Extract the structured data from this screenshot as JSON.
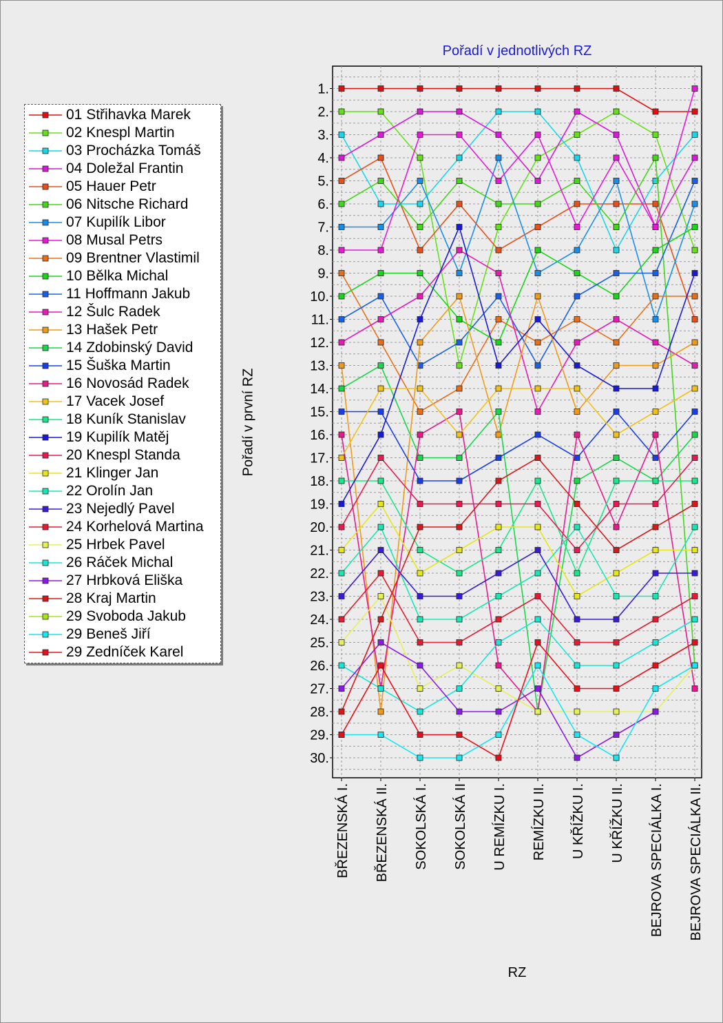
{
  "chart_data": {
    "type": "line",
    "title": "Pořadí v jednotlivých RZ",
    "xlabel": "RZ",
    "ylabel": "Pořadí v první RZ",
    "y_inverted": true,
    "ylim": [
      1,
      30
    ],
    "y_tick_labels": [
      "1.",
      "2.",
      "3.",
      "4.",
      "5.",
      "6.",
      "7.",
      "8.",
      "9.",
      "10.",
      "11.",
      "12.",
      "13.",
      "14.",
      "15.",
      "16.",
      "17.",
      "18.",
      "19.",
      "20.",
      "21.",
      "22.",
      "23.",
      "24.",
      "25.",
      "26.",
      "27.",
      "28.",
      "29.",
      "30."
    ],
    "categories": [
      "BŘEZENSKÁ I.",
      "BŘEZENSKÁ II.",
      "SOKOLSKÁ I.",
      "SOKOLSKÁ II",
      "U REMÍZKU I.",
      "REMÍZKU II.",
      "U KŘÍŽKU I.",
      "U KŘÍŽKU II.",
      "BEJROVA SPECIÁLKA I.",
      "BEJROVA SPECIÁLKA II."
    ],
    "grid": true,
    "legend_position": "left",
    "series": [
      {
        "name": "01 Střihavka Marek",
        "color": "#e01010",
        "values": [
          1,
          1,
          1,
          1,
          1,
          1,
          1,
          1,
          2,
          2
        ]
      },
      {
        "name": "02 Knespl Martin",
        "color": "#66e01a",
        "values": [
          2,
          2,
          4,
          13,
          7,
          4,
          3,
          2,
          3,
          8
        ]
      },
      {
        "name": "03 Procházka Tomáš",
        "color": "#1ad6e6",
        "values": [
          3,
          6,
          6,
          4,
          2,
          2,
          4,
          8,
          5,
          3
        ]
      },
      {
        "name": "04 Doležal Frantin",
        "color": "#d61ad6",
        "values": [
          4,
          3,
          2,
          2,
          3,
          5,
          2,
          3,
          7,
          4
        ]
      },
      {
        "name": "05 Hauer Petr",
        "color": "#e6501a",
        "values": [
          5,
          4,
          8,
          6,
          8,
          7,
          6,
          6,
          6,
          11
        ]
      },
      {
        "name": "06 Nitsche Richard",
        "color": "#44d61a",
        "values": [
          6,
          5,
          7,
          5,
          6,
          6,
          5,
          7,
          4,
          26
        ]
      },
      {
        "name": "07 Kupilík Libor",
        "color": "#1a8ee6",
        "values": [
          7,
          7,
          5,
          9,
          4,
          9,
          8,
          5,
          11,
          6
        ]
      },
      {
        "name": "08 Musal Petrs",
        "color": "#e61ad6",
        "values": [
          8,
          8,
          3,
          3,
          5,
          3,
          7,
          4,
          7,
          1
        ]
      },
      {
        "name": "09 Brentner Vlastimil",
        "color": "#e6701a",
        "values": [
          9,
          12,
          15,
          14,
          11,
          12,
          11,
          12,
          10,
          10
        ]
      },
      {
        "name": "10 Bělka Michal",
        "color": "#1ad61a",
        "values": [
          10,
          9,
          9,
          11,
          12,
          8,
          9,
          10,
          8,
          7
        ]
      },
      {
        "name": "11 Hoffmann Jakub",
        "color": "#1a60e6",
        "values": [
          11,
          10,
          13,
          12,
          10,
          13,
          10,
          9,
          9,
          5
        ]
      },
      {
        "name": "12 Šulc Radek",
        "color": "#e61ab4",
        "values": [
          12,
          11,
          10,
          8,
          9,
          15,
          12,
          11,
          12,
          13
        ]
      },
      {
        "name": "13 Hašek Petr",
        "color": "#f09a1a",
        "values": [
          13,
          28,
          12,
          10,
          16,
          10,
          15,
          13,
          13,
          12
        ]
      },
      {
        "name": "14 Zdobinský David",
        "color": "#1ad64a",
        "values": [
          14,
          13,
          17,
          17,
          15,
          28,
          18,
          17,
          18,
          16
        ]
      },
      {
        "name": "15 Šuška Martin",
        "color": "#1a3ee6",
        "values": [
          15,
          15,
          18,
          18,
          17,
          16,
          17,
          15,
          17,
          15
        ]
      },
      {
        "name": "16 Novosád Radek",
        "color": "#e61a8a",
        "values": [
          16,
          27,
          16,
          15,
          26,
          28,
          16,
          20,
          16,
          27
        ]
      },
      {
        "name": "17 Vacek Josef",
        "color": "#f0c21a",
        "values": [
          17,
          14,
          14,
          16,
          14,
          14,
          14,
          16,
          15,
          14
        ]
      },
      {
        "name": "18 Kuník Stanislav",
        "color": "#1ae68a",
        "values": [
          18,
          18,
          21,
          22,
          21,
          18,
          22,
          18,
          18,
          18
        ]
      },
      {
        "name": "19 Kupilík Matěj",
        "color": "#1a1ad6",
        "values": [
          19,
          16,
          11,
          7,
          13,
          11,
          13,
          14,
          14,
          9
        ]
      },
      {
        "name": "20 Knespl Standa",
        "color": "#e61a50",
        "values": [
          20,
          17,
          19,
          19,
          19,
          19,
          21,
          19,
          19,
          17
        ]
      },
      {
        "name": "21 Klinger Jan",
        "color": "#e6e61a",
        "values": [
          21,
          19,
          22,
          21,
          20,
          20,
          23,
          22,
          21,
          21
        ]
      },
      {
        "name": "22 Orolín Jan",
        "color": "#1ae6b4",
        "values": [
          22,
          20,
          24,
          24,
          23,
          22,
          20,
          23,
          23,
          20
        ]
      },
      {
        "name": "23 Nejedlý Pavel",
        "color": "#3a1ad6",
        "values": [
          23,
          21,
          23,
          23,
          22,
          21,
          24,
          24,
          22,
          22
        ]
      },
      {
        "name": "24 Korhelová Martina",
        "color": "#e61a30",
        "values": [
          24,
          22,
          25,
          25,
          24,
          23,
          25,
          25,
          24,
          23
        ]
      },
      {
        "name": "25 Hrbek Pavel",
        "color": "#e6f05a",
        "values": [
          25,
          23,
          27,
          26,
          27,
          28,
          28,
          28,
          28,
          26
        ]
      },
      {
        "name": "26 Ráček Michal",
        "color": "#1ae6d6",
        "values": [
          26,
          27,
          28,
          27,
          25,
          24,
          26,
          26,
          25,
          24
        ]
      },
      {
        "name": "27 Hrbková Eliška",
        "color": "#8a1ae6",
        "values": [
          27,
          25,
          26,
          28,
          28,
          27,
          30,
          29,
          28,
          null
        ]
      },
      {
        "name": "28 Kraj Martin",
        "color": "#d61a1a",
        "values": [
          28,
          24,
          20,
          20,
          18,
          17,
          19,
          21,
          20,
          19
        ]
      },
      {
        "name": "29 Svoboda Jakub",
        "color": "#a8e61a",
        "values": [
          29,
          null,
          null,
          null,
          null,
          null,
          null,
          null,
          null,
          null
        ]
      },
      {
        "name": "29 Beneš Jiří",
        "color": "#1ae6f0",
        "values": [
          29,
          29,
          30,
          30,
          29,
          26,
          29,
          30,
          27,
          26
        ]
      },
      {
        "name": "29 Zedníček Karel",
        "color": "#e6101a",
        "values": [
          29,
          26,
          29,
          29,
          30,
          25,
          27,
          27,
          26,
          25
        ]
      }
    ]
  }
}
